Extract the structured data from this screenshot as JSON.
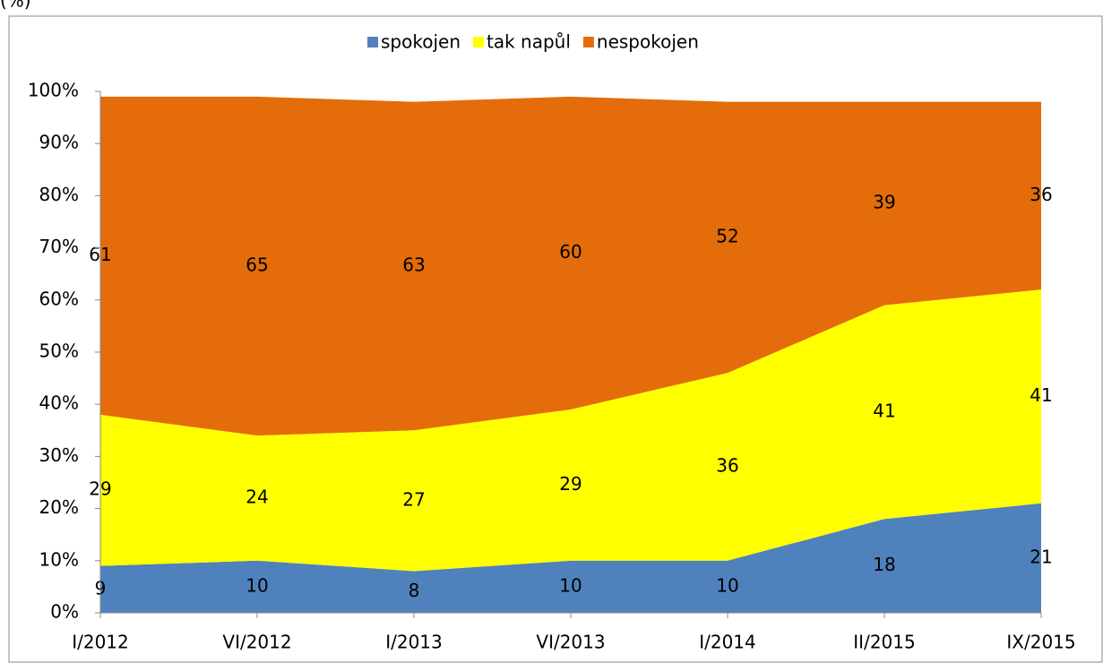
{
  "chart_data": {
    "type": "stacked_area",
    "y_axis_label": "(%)",
    "categories": [
      "I/2012",
      "VI/2012",
      "I/2013",
      "VI/2013",
      "I/2014",
      "II/2015",
      "IX/2015"
    ],
    "series": [
      {
        "name": "spokojen",
        "color": "#4f81bd",
        "values": [
          9,
          10,
          8,
          10,
          10,
          18,
          21
        ]
      },
      {
        "name": "tak napůl",
        "color": "#ffff00",
        "values": [
          29,
          24,
          27,
          29,
          36,
          41,
          41
        ]
      },
      {
        "name": "nespokojen",
        "color": "#e46c0a",
        "values": [
          61,
          65,
          63,
          60,
          52,
          39,
          36
        ]
      }
    ],
    "ylim": [
      0,
      100
    ],
    "yticks": [
      {
        "value": 0,
        "label": "0%"
      },
      {
        "value": 10,
        "label": "10%"
      },
      {
        "value": 20,
        "label": "20%"
      },
      {
        "value": 30,
        "label": "30%"
      },
      {
        "value": 40,
        "label": "40%"
      },
      {
        "value": 50,
        "label": "50%"
      },
      {
        "value": 60,
        "label": "60%"
      },
      {
        "value": 70,
        "label": "70%"
      },
      {
        "value": 80,
        "label": "80%"
      },
      {
        "value": 90,
        "label": "90%"
      },
      {
        "value": 100,
        "label": "100%"
      }
    ],
    "legend": "top",
    "grid": false
  }
}
